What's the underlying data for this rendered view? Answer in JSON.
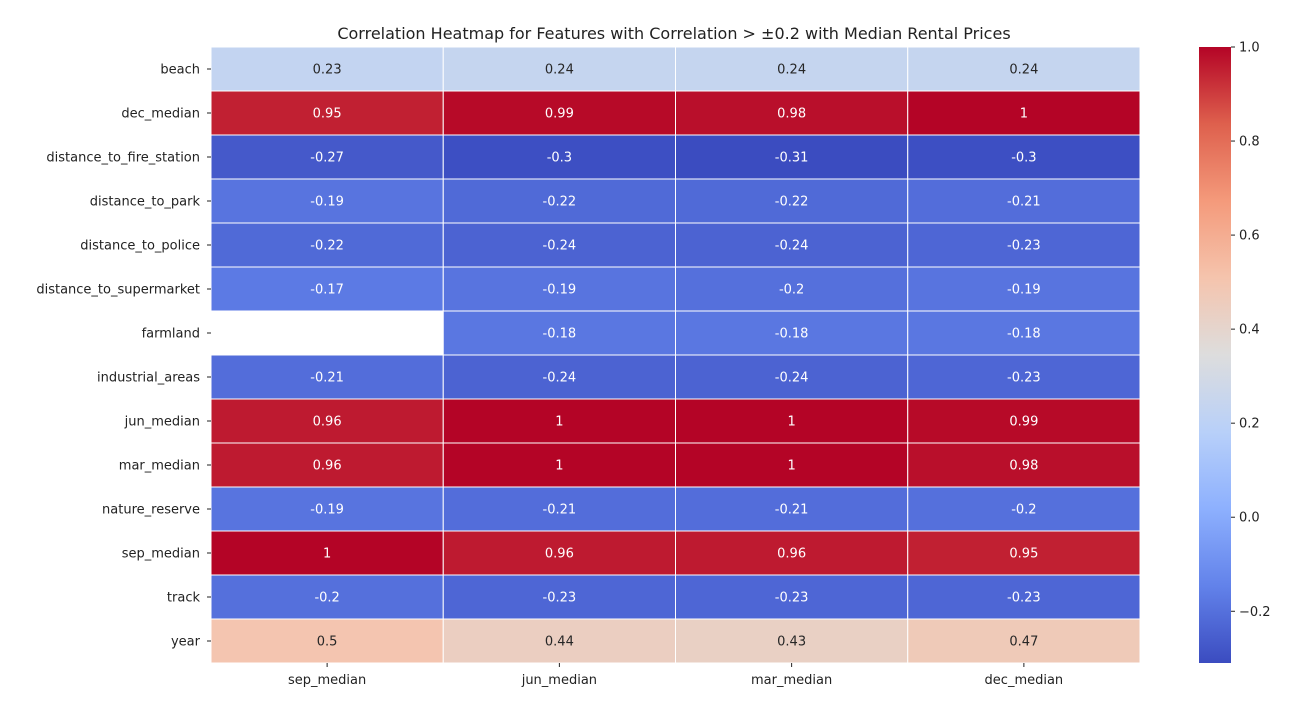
{
  "chart_data": {
    "type": "heatmap",
    "title": "Correlation Heatmap for Features with Correlation > ±0.2 with Median Rental Prices",
    "xlabel": "",
    "ylabel": "",
    "columns": [
      "sep_median",
      "jun_median",
      "mar_median",
      "dec_median"
    ],
    "rows": [
      "beach",
      "dec_median",
      "distance_to_fire_station",
      "distance_to_park",
      "distance_to_police",
      "distance_to_supermarket",
      "farmland",
      "industrial_areas",
      "jun_median",
      "mar_median",
      "nature_reserve",
      "sep_median",
      "track",
      "year"
    ],
    "values": [
      [
        0.23,
        0.24,
        0.24,
        0.24
      ],
      [
        0.95,
        0.99,
        0.98,
        1
      ],
      [
        -0.27,
        -0.3,
        -0.31,
        -0.3
      ],
      [
        -0.19,
        -0.22,
        -0.22,
        -0.21
      ],
      [
        -0.22,
        -0.24,
        -0.24,
        -0.23
      ],
      [
        -0.17,
        -0.19,
        -0.2,
        -0.19
      ],
      [
        null,
        -0.18,
        -0.18,
        -0.18
      ],
      [
        -0.21,
        -0.24,
        -0.24,
        -0.23
      ],
      [
        0.96,
        1,
        1,
        0.99
      ],
      [
        0.96,
        1,
        1,
        0.98
      ],
      [
        -0.19,
        -0.21,
        -0.21,
        -0.2
      ],
      [
        1,
        0.96,
        0.96,
        0.95
      ],
      [
        -0.2,
        -0.23,
        -0.23,
        -0.23
      ],
      [
        0.5,
        0.44,
        0.43,
        0.47
      ]
    ],
    "colormap": "coolwarm",
    "vmin": -0.31,
    "vmax": 1.0,
    "colorbar_ticks": [
      -0.2,
      0.0,
      0.2,
      0.4,
      0.6,
      0.8,
      1.0
    ],
    "colorbar_tick_labels": [
      "−0.2",
      "0.0",
      "0.2",
      "0.4",
      "0.6",
      "0.8",
      "1.0"
    ],
    "grid": true,
    "legend": "colorbar-right"
  }
}
